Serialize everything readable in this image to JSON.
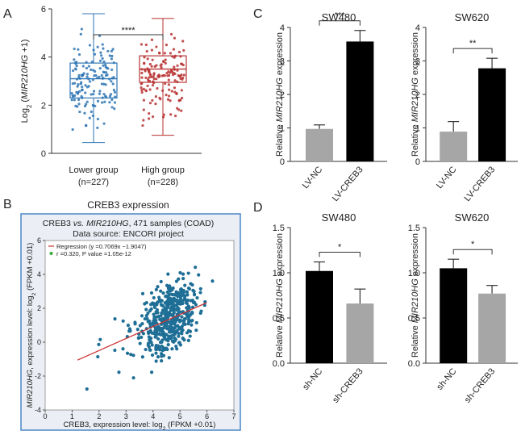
{
  "colors": {
    "blue": "#2f76b4",
    "red": "#b83232",
    "gray": "#a6a6a6",
    "black": "#000000",
    "scatter": "#1e6e96",
    "line": "#cc3333",
    "frame": "#4a86c5",
    "panel_bg": "#ebeff5"
  },
  "chart_data": [
    {
      "id": "A",
      "panel_label": "A",
      "type": "box",
      "ylabel_pre": "Log",
      "ylabel_sub": "2",
      "ylabel_open": " (",
      "ylabel_gene": "MIR210HG",
      "ylabel_post": " +1)",
      "ylim": [
        0,
        6
      ],
      "yticks": [
        0,
        2,
        4,
        6
      ],
      "categories": [
        "Lower group",
        "High group"
      ],
      "counts": [
        "(n=227)",
        "(n=228)"
      ],
      "boxes": [
        {
          "name": "Lower group",
          "min": 0.45,
          "q1": 2.3,
          "median": 3.1,
          "q3": 3.75,
          "max": 5.8
        },
        {
          "name": "High group",
          "min": 0.75,
          "q1": 2.95,
          "median": 3.5,
          "q3": 4.05,
          "max": 5.6
        }
      ],
      "significance": "****"
    },
    {
      "id": "C1",
      "panel_label": "C",
      "type": "bar",
      "title": "SW480",
      "ylabel_pre": "Relative ",
      "ylabel_gene": "MIR210HG",
      "ylabel_post": " expression",
      "categories": [
        "LV-NC",
        "LV-CREB3"
      ],
      "values": [
        0.97,
        3.58
      ],
      "errors": [
        0.12,
        0.33
      ],
      "ylim": [
        0,
        4
      ],
      "yticks": [
        0,
        1,
        2,
        3,
        4
      ],
      "significance": "***"
    },
    {
      "id": "C2",
      "panel_label": "",
      "type": "bar",
      "title": "SW620",
      "ylabel_pre": "Relative ",
      "ylabel_gene": "MIR210HG",
      "ylabel_post": " expression",
      "categories": [
        "LV-NC",
        "LV-CREB3"
      ],
      "values": [
        0.89,
        2.78
      ],
      "errors": [
        0.3,
        0.3
      ],
      "ylim": [
        0,
        4
      ],
      "yticks": [
        0,
        1,
        2,
        3,
        4
      ],
      "significance": "**"
    },
    {
      "id": "D1",
      "panel_label": "D",
      "type": "bar",
      "title": "SW480",
      "ylabel_pre": "Relative ",
      "ylabel_gene": "MIR210HG",
      "ylabel_post": " expression",
      "categories": [
        "sh-NC",
        "sh-CREB3"
      ],
      "values": [
        1.02,
        0.66
      ],
      "errors": [
        0.1,
        0.16
      ],
      "ylim": [
        0,
        1.5
      ],
      "yticks": [
        "0.0",
        "0.5",
        "1.0",
        "1.5"
      ],
      "significance": "*"
    },
    {
      "id": "D2",
      "panel_label": "",
      "type": "bar",
      "title": "SW620",
      "ylabel_pre": "Relative ",
      "ylabel_gene": "MIR210HG",
      "ylabel_post": " expression",
      "categories": [
        "sh-NC",
        "sh-CREB3"
      ],
      "values": [
        1.05,
        0.77
      ],
      "errors": [
        0.1,
        0.09
      ],
      "ylim": [
        0,
        1.5
      ],
      "yticks": [
        "0.0",
        "0.5",
        "1.0",
        "1.5"
      ],
      "significance": "*"
    },
    {
      "id": "B",
      "panel_label": "B",
      "type": "scatter",
      "heading": "CREB3 expression",
      "title1_a": "CREB3 ",
      "title1_vs": "vs.",
      "title1_sp": " ",
      "title1_gene": "MIR210HG",
      "title1_b": ", 471 samples (COAD)",
      "title2": "Data source: ENCORI project",
      "legend_regression": "Regression (y =0.7069x −1.9047)",
      "legend_stats": "r =0.320, P value =1.05e-12",
      "xlabel_a": "CREB3, expression level: log",
      "xlabel_sub": "2",
      "xlabel_b": " (FPKM +0.01)",
      "ylabel_gene": "MIR210HG",
      "ylabel_a": ", expression level: log",
      "ylabel_sub": "2",
      "ylabel_b": " (FPKM +0.01)",
      "xlim": [
        0,
        7
      ],
      "ylim": [
        -4,
        6
      ],
      "xticks": [
        0,
        1,
        2,
        3,
        4,
        5,
        6,
        7
      ],
      "yticks": [
        -4,
        -2,
        0,
        2,
        4,
        6
      ],
      "regression": {
        "slope": 0.7069,
        "intercept": -1.9047,
        "x_range": [
          1.2,
          6.0
        ]
      },
      "n": 471
    }
  ]
}
